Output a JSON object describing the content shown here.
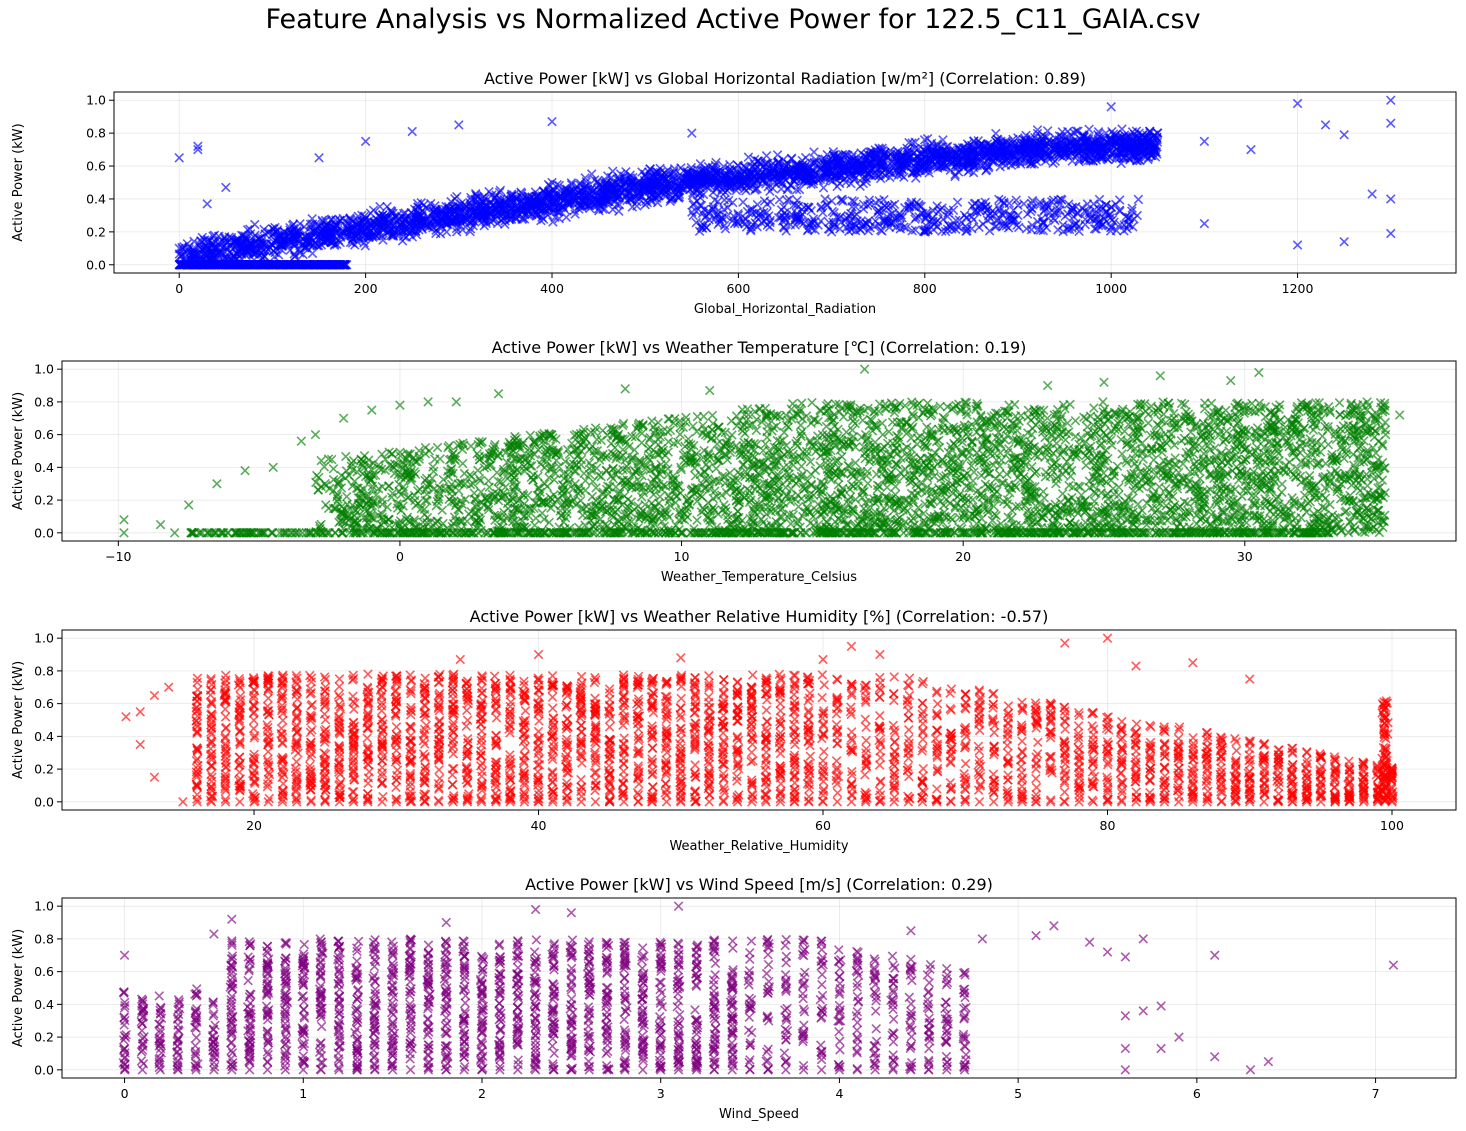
{
  "figure_title": "Feature Analysis vs Normalized Active Power for 122.5_C11_GAIA.csv",
  "chart_data": [
    {
      "type": "scatter",
      "marker": "x",
      "color": "#0000ff",
      "title": "Active Power [kW] vs Global Horizontal Radiation [w/m²] (Correlation: 0.89)",
      "xlabel": "Global_Horizontal_Radiation",
      "ylabel": "Active Power (kW)",
      "xlim": [
        -70,
        1370
      ],
      "ylim": [
        -0.05,
        1.05
      ],
      "xticks": [
        0,
        200,
        400,
        600,
        800,
        1000,
        1200
      ],
      "xtick_labels": [
        "0",
        "200",
        "400",
        "600",
        "800",
        "1000",
        "1200"
      ],
      "yticks": [
        0.0,
        0.2,
        0.4,
        0.6,
        0.8,
        1.0
      ],
      "ytick_labels": [
        "0.0",
        "0.2",
        "0.4",
        "0.6",
        "0.8",
        "1.0"
      ],
      "grid": true,
      "points": [
        [
          0,
          0.65
        ],
        [
          0,
          0.0
        ],
        [
          0,
          0.1
        ],
        [
          20,
          0.7
        ],
        [
          20,
          0.72
        ],
        [
          20,
          0.02
        ],
        [
          30,
          0.37
        ],
        [
          50,
          0.47
        ],
        [
          50,
          0.15
        ],
        [
          100,
          0.22
        ],
        [
          150,
          0.65
        ],
        [
          200,
          0.75
        ],
        [
          250,
          0.81
        ],
        [
          300,
          0.85
        ],
        [
          400,
          0.87
        ],
        [
          400,
          0.5
        ],
        [
          500,
          0.55
        ],
        [
          550,
          0.8
        ],
        [
          600,
          0.6
        ],
        [
          600,
          0.3
        ],
        [
          700,
          0.62
        ],
        [
          700,
          0.2
        ],
        [
          800,
          0.65
        ],
        [
          800,
          0.2
        ],
        [
          900,
          0.7
        ],
        [
          900,
          0.3
        ],
        [
          1000,
          0.96
        ],
        [
          1000,
          0.75
        ],
        [
          1000,
          0.35
        ],
        [
          1050,
          0.8
        ],
        [
          1100,
          0.75
        ],
        [
          1100,
          0.25
        ],
        [
          1150,
          0.7
        ],
        [
          1200,
          0.98
        ],
        [
          1200,
          0.12
        ],
        [
          1230,
          0.85
        ],
        [
          1250,
          0.79
        ],
        [
          1250,
          0.14
        ],
        [
          1280,
          0.43
        ],
        [
          1300,
          1.0
        ],
        [
          1300,
          0.86
        ],
        [
          1300,
          0.4
        ],
        [
          1300,
          0.19
        ]
      ]
    },
    {
      "type": "scatter",
      "marker": "x",
      "color": "#008000",
      "title": "Active Power [kW] vs Weather Temperature [℃] (Correlation: 0.19)",
      "xlabel": "Weather_Temperature_Celsius",
      "ylabel": "Active Power (kW)",
      "xlim": [
        -12,
        37.5
      ],
      "ylim": [
        -0.05,
        1.05
      ],
      "xticks": [
        -10,
        0,
        10,
        20,
        30
      ],
      "xtick_labels": [
        "−10",
        "0",
        "10",
        "20",
        "30"
      ],
      "yticks": [
        0.0,
        0.2,
        0.4,
        0.6,
        0.8,
        1.0
      ],
      "ytick_labels": [
        "0.0",
        "0.2",
        "0.4",
        "0.6",
        "0.8",
        "1.0"
      ],
      "grid": true,
      "points": [
        [
          -9.8,
          0.08
        ],
        [
          -9.8,
          0.0
        ],
        [
          -8.5,
          0.05
        ],
        [
          -8,
          0.0
        ],
        [
          -7.5,
          0.17
        ],
        [
          -6.5,
          0.3
        ],
        [
          -5.5,
          0.38
        ],
        [
          -4.5,
          0.4
        ],
        [
          -3.5,
          0.56
        ],
        [
          -3,
          0.6
        ],
        [
          -2,
          0.7
        ],
        [
          -1,
          0.75
        ],
        [
          0,
          0.78
        ],
        [
          1,
          0.8
        ],
        [
          2,
          0.8
        ],
        [
          3.5,
          0.85
        ],
        [
          8,
          0.88
        ],
        [
          11,
          0.87
        ],
        [
          16.5,
          1.0
        ],
        [
          23,
          0.9
        ],
        [
          25,
          0.92
        ],
        [
          27,
          0.96
        ],
        [
          29.5,
          0.93
        ],
        [
          30.5,
          0.98
        ],
        [
          34,
          0.78
        ],
        [
          35,
          0.6
        ],
        [
          35.5,
          0.72
        ]
      ]
    },
    {
      "type": "scatter",
      "marker": "x",
      "color": "#ff0000",
      "title": "Active Power [kW] vs Weather Relative Humidity [%] (Correlation: -0.57)",
      "xlabel": "Weather_Relative_Humidity",
      "ylabel": "Active Power (kW)",
      "xlim": [
        6.5,
        104.5
      ],
      "ylim": [
        -0.05,
        1.05
      ],
      "xticks": [
        20,
        40,
        60,
        80,
        100
      ],
      "xtick_labels": [
        "20",
        "40",
        "60",
        "80",
        "100"
      ],
      "yticks": [
        0.0,
        0.2,
        0.4,
        0.6,
        0.8,
        1.0
      ],
      "ytick_labels": [
        "0.0",
        "0.2",
        "0.4",
        "0.6",
        "0.8",
        "1.0"
      ],
      "grid": true,
      "points": [
        [
          11,
          0.52
        ],
        [
          12,
          0.55
        ],
        [
          12,
          0.35
        ],
        [
          13,
          0.65
        ],
        [
          13,
          0.15
        ],
        [
          14,
          0.7
        ],
        [
          15,
          0.0
        ],
        [
          16,
          0.73
        ],
        [
          17,
          0.22
        ],
        [
          34.5,
          0.87
        ],
        [
          40,
          0.9
        ],
        [
          50,
          0.88
        ],
        [
          60,
          0.87
        ],
        [
          62,
          0.95
        ],
        [
          64,
          0.9
        ],
        [
          77,
          0.97
        ],
        [
          80,
          1.0
        ],
        [
          82,
          0.83
        ],
        [
          86,
          0.85
        ],
        [
          90,
          0.75
        ]
      ]
    },
    {
      "type": "scatter",
      "marker": "x",
      "color": "#800080",
      "title": "Active Power [kW] vs Wind Speed [m/s] (Correlation: 0.29)",
      "xlabel": "Wind_Speed",
      "ylabel": "Active Power (kW)",
      "xlim": [
        -0.35,
        7.45
      ],
      "ylim": [
        -0.05,
        1.05
      ],
      "xticks": [
        0,
        1,
        2,
        3,
        4,
        5,
        6,
        7
      ],
      "xtick_labels": [
        "0",
        "1",
        "2",
        "3",
        "4",
        "5",
        "6",
        "7"
      ],
      "yticks": [
        0.0,
        0.2,
        0.4,
        0.6,
        0.8,
        1.0
      ],
      "ytick_labels": [
        "0.0",
        "0.2",
        "0.4",
        "0.6",
        "0.8",
        "1.0"
      ],
      "grid": true,
      "points": [
        [
          0,
          0.7
        ],
        [
          0.5,
          0.83
        ],
        [
          0.6,
          0.92
        ],
        [
          1.8,
          0.9
        ],
        [
          2.3,
          0.98
        ],
        [
          2.5,
          0.96
        ],
        [
          3.1,
          1.0
        ],
        [
          4.4,
          0.85
        ],
        [
          4.8,
          0.8
        ],
        [
          5.1,
          0.82
        ],
        [
          5.2,
          0.88
        ],
        [
          5.4,
          0.78
        ],
        [
          5.5,
          0.72
        ],
        [
          5.6,
          0.69
        ],
        [
          5.6,
          0.33
        ],
        [
          5.6,
          0.13
        ],
        [
          5.6,
          0.0
        ],
        [
          5.7,
          0.8
        ],
        [
          5.7,
          0.36
        ],
        [
          5.8,
          0.39
        ],
        [
          5.8,
          0.13
        ],
        [
          5.9,
          0.2
        ],
        [
          6.1,
          0.7
        ],
        [
          6.1,
          0.08
        ],
        [
          6.3,
          0.0
        ],
        [
          6.4,
          0.05
        ],
        [
          7.1,
          0.64
        ]
      ]
    }
  ]
}
